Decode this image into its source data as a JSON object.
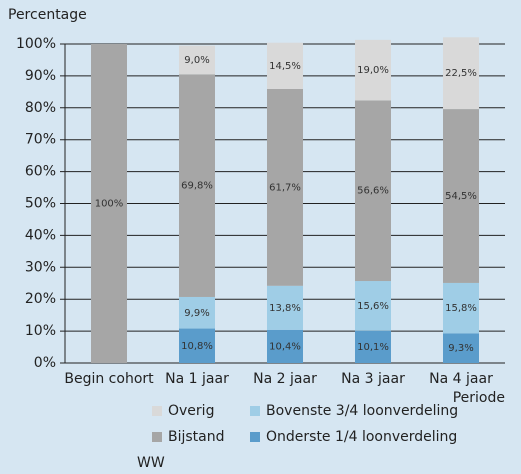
{
  "chart_data": {
    "type": "stacked_bar",
    "ylabel": "Percentage",
    "xlabel": "Periode",
    "categories": [
      "Begin cohort",
      "Na 1 jaar",
      "Na 2 jaar",
      "Na 3 jaar",
      "Na 4 jaar"
    ],
    "series": [
      {
        "name": "Onderste 1/4 loonverdeling",
        "color": "#5a9ccb",
        "values": [
          null,
          10.8,
          10.4,
          10.1,
          9.3
        ],
        "value_labels": [
          null,
          "10,8%",
          "10,4%",
          "10,1%",
          "9,3%"
        ]
      },
      {
        "name": "Bovenste 3/4 loonverdeling",
        "color": "#9fcde6",
        "values": [
          null,
          9.9,
          13.8,
          15.6,
          15.8
        ],
        "value_labels": [
          null,
          "9,9%",
          "13,8%",
          "15,6%",
          "15,8%"
        ]
      },
      {
        "name": "WW",
        "color": "#d6e6f2",
        "values": [
          null,
          null,
          null,
          null,
          null
        ]
      },
      {
        "name": "Bijstand",
        "color": "#a6a6a6",
        "values": [
          100,
          69.8,
          61.7,
          56.6,
          54.5
        ],
        "value_labels": [
          "100%",
          "69,8%",
          "61,7%",
          "56,6%",
          "54,5%"
        ]
      },
      {
        "name": "Overig",
        "color": "#d9d9d9",
        "values": [
          null,
          9.0,
          14.5,
          19.0,
          22.5
        ],
        "value_labels": [
          null,
          "9,0%",
          "14,5%",
          "19,0%",
          "22,5%"
        ]
      }
    ],
    "ylim": [
      0,
      100
    ],
    "yticks": [
      {
        "value": 0,
        "label": "0%"
      },
      {
        "value": 10,
        "label": "10%"
      },
      {
        "value": 20,
        "label": "20%"
      },
      {
        "value": 30,
        "label": "30%"
      },
      {
        "value": 40,
        "label": "40%"
      },
      {
        "value": 50,
        "label": "50%"
      },
      {
        "value": 60,
        "label": "60%"
      },
      {
        "value": 70,
        "label": "70%"
      },
      {
        "value": 80,
        "label": "80%"
      },
      {
        "value": 90,
        "label": "90%"
      },
      {
        "value": 100,
        "label": "100%"
      }
    ],
    "grid": true
  }
}
